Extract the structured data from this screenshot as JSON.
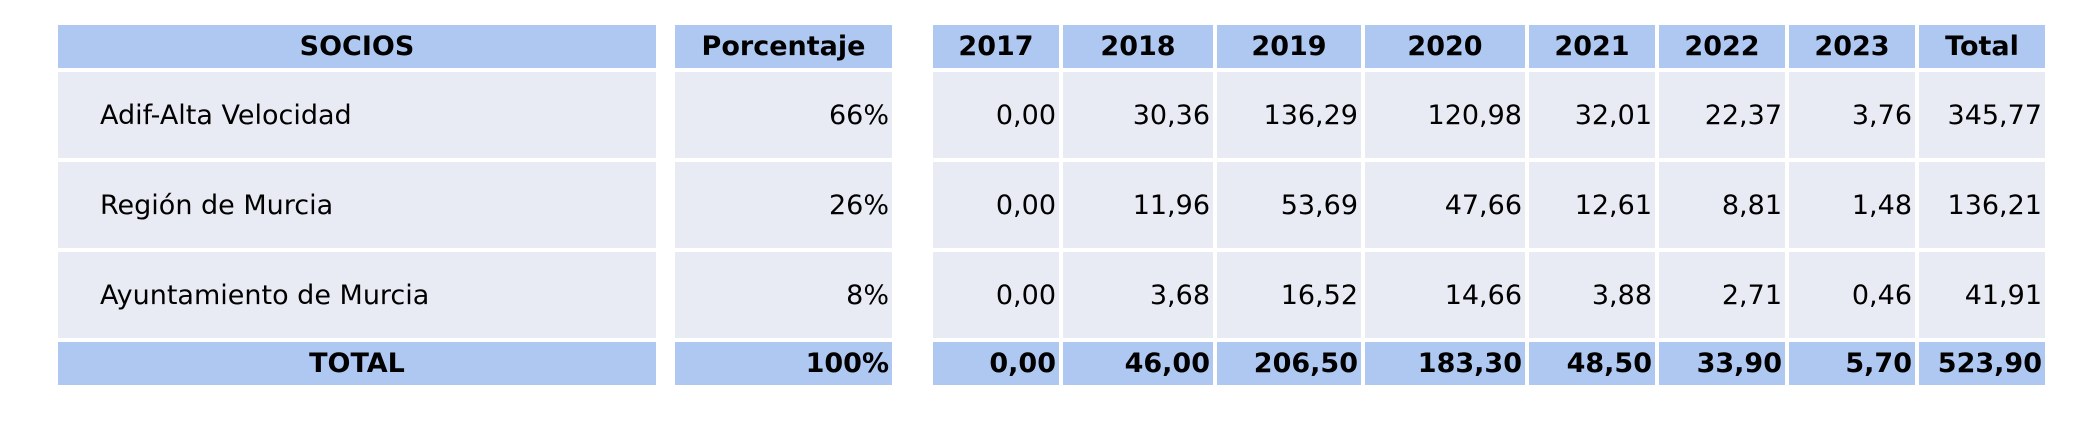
{
  "table": {
    "headers": {
      "socios": "SOCIOS",
      "porcentaje": "Porcentaje",
      "years": [
        "2017",
        "2018",
        "2019",
        "2020",
        "2021",
        "2022",
        "2023",
        "Total"
      ]
    },
    "rows": [
      {
        "socio": "Adif-Alta Velocidad",
        "porcentaje": "66%",
        "values": [
          "0,00",
          "30,36",
          "136,29",
          "120,98",
          "32,01",
          "22,37",
          "3,76",
          "345,77"
        ]
      },
      {
        "socio": "Región de Murcia",
        "porcentaje": "26%",
        "values": [
          "0,00",
          "11,96",
          "53,69",
          "47,66",
          "12,61",
          "8,81",
          "1,48",
          "136,21"
        ]
      },
      {
        "socio": "Ayuntamiento de Murcia",
        "porcentaje": "8%",
        "values": [
          "0,00",
          "3,68",
          "16,52",
          "14,66",
          "3,88",
          "2,71",
          "0,46",
          "41,91"
        ]
      }
    ],
    "total": {
      "label": "TOTAL",
      "porcentaje": "100%",
      "values": [
        "0,00",
        "46,00",
        "206,50",
        "183,30",
        "48,50",
        "33,90",
        "5,70",
        "523,90"
      ]
    }
  },
  "colors": {
    "header_bg": "#aec8f1",
    "row_bg": "#e9ebf4"
  }
}
